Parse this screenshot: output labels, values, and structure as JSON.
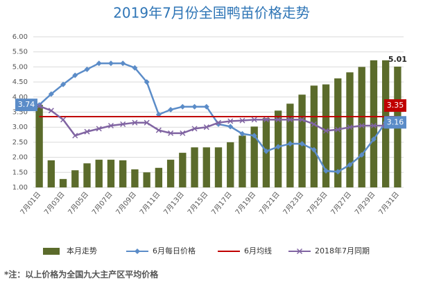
{
  "chart_data": {
    "type": "bar",
    "title": "2019年7月份全国鸭苗价格走势",
    "categories": [
      "7月01日",
      null,
      "7月03日",
      null,
      "7月05日",
      null,
      "7月07日",
      null,
      "7月09日",
      null,
      "7月11日",
      null,
      "7月13日",
      null,
      "7月15日",
      null,
      "7月17日",
      null,
      "7月19日",
      null,
      "7月21日",
      null,
      "7月23日",
      null,
      "7月25日",
      null,
      "7月27日",
      null,
      "7月29日",
      null,
      "7月31日"
    ],
    "ylim": [
      1,
      6
    ],
    "yticks": [
      {
        "value": 1,
        "label": "1.00"
      },
      {
        "value": 1.5,
        "label": "1.50"
      },
      {
        "value": 2,
        "label": "2.00"
      },
      {
        "value": 2.5,
        "label": "2.50"
      },
      {
        "value": 3,
        "label": "3.00"
      },
      {
        "value": 3.5,
        "label": "3.50"
      },
      {
        "value": 4,
        "label": "4.00"
      },
      {
        "value": 4.5,
        "label": "4.50"
      },
      {
        "value": 5,
        "label": "5.00"
      },
      {
        "value": 5.5,
        "label": "5.50"
      },
      {
        "value": 6,
        "label": "6.00"
      }
    ],
    "grid": true,
    "series": [
      {
        "name": "本月走势",
        "type": "bar",
        "color": "#5b6b2b",
        "values": [
          3.74,
          1.9,
          1.28,
          1.57,
          1.8,
          1.92,
          1.92,
          1.9,
          1.6,
          1.5,
          1.65,
          1.92,
          2.15,
          2.33,
          2.33,
          2.33,
          2.5,
          2.72,
          3.02,
          3.3,
          3.55,
          3.78,
          4.08,
          4.38,
          4.42,
          4.62,
          4.82,
          5.0,
          5.22,
          5.22,
          5.01
        ],
        "value_labels": [
          null,
          null,
          null,
          null,
          null,
          null,
          null,
          null,
          null,
          null,
          null,
          null,
          null,
          null,
          null,
          null,
          null,
          null,
          null,
          null,
          null,
          null,
          null,
          null,
          null,
          null,
          null,
          null,
          null,
          null,
          "5.01"
        ]
      },
      {
        "name": "6月每日价格",
        "type": "line",
        "marker": "diamond",
        "color": "#5b8cc8",
        "values": [
          3.74,
          4.1,
          4.42,
          4.72,
          4.92,
          5.12,
          5.12,
          5.12,
          4.97,
          4.5,
          3.42,
          3.58,
          3.68,
          3.68,
          3.68,
          3.1,
          3.02,
          2.78,
          2.72,
          2.2,
          2.35,
          2.45,
          2.45,
          2.25,
          1.55,
          1.52,
          1.75,
          2.08,
          2.6,
          3.16,
          null
        ],
        "value_labels": [
          "3.74",
          null,
          null,
          null,
          null,
          null,
          null,
          null,
          null,
          null,
          null,
          null,
          null,
          null,
          null,
          null,
          null,
          null,
          null,
          null,
          null,
          null,
          null,
          null,
          null,
          null,
          null,
          null,
          null,
          "3.16",
          null
        ]
      },
      {
        "name": "6月均线",
        "type": "line",
        "color": "#c00000",
        "values": [
          3.35,
          3.35,
          3.35,
          3.35,
          3.35,
          3.35,
          3.35,
          3.35,
          3.35,
          3.35,
          3.35,
          3.35,
          3.35,
          3.35,
          3.35,
          3.35,
          3.35,
          3.35,
          3.35,
          3.35,
          3.35,
          3.35,
          3.35,
          3.35,
          3.35,
          3.35,
          3.35,
          3.35,
          3.35,
          3.35,
          3.35
        ],
        "value_labels": [
          null,
          null,
          null,
          null,
          null,
          null,
          null,
          null,
          null,
          null,
          null,
          null,
          null,
          null,
          null,
          null,
          null,
          null,
          null,
          null,
          null,
          null,
          null,
          null,
          null,
          null,
          null,
          null,
          null,
          null,
          "3.35"
        ]
      },
      {
        "name": "2018年7月同期",
        "type": "line",
        "marker": "x",
        "color": "#8064a2",
        "values": [
          3.7,
          3.55,
          3.25,
          2.72,
          2.85,
          2.95,
          3.05,
          3.1,
          3.15,
          3.15,
          2.9,
          2.8,
          2.8,
          2.95,
          3.0,
          3.15,
          3.2,
          3.22,
          3.25,
          3.25,
          3.25,
          3.25,
          3.25,
          3.1,
          2.88,
          2.92,
          3.0,
          3.05,
          3.05,
          3.05,
          3.05
        ]
      }
    ],
    "footnote": "*注：以上价格为全国九大主产区平均价格"
  }
}
